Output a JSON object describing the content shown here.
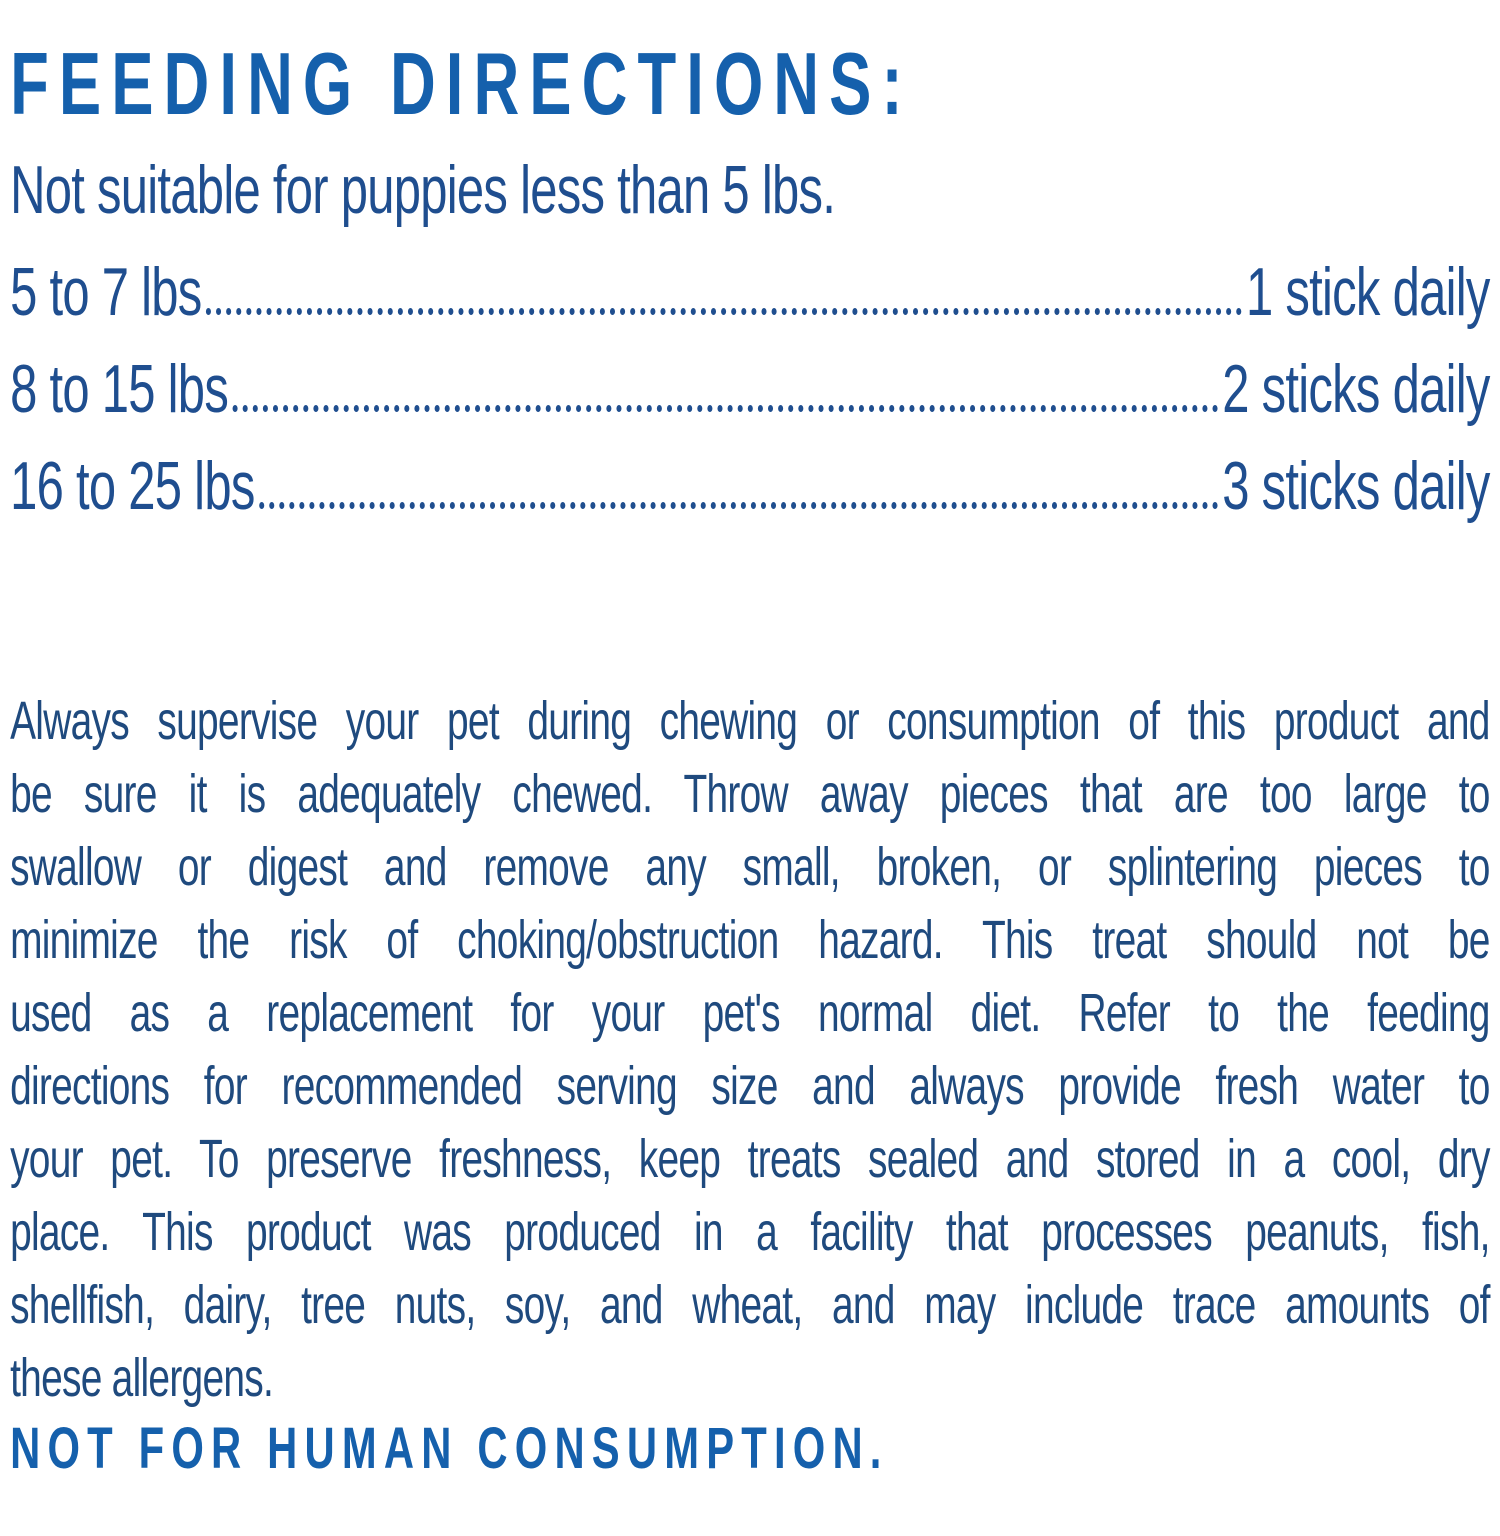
{
  "page": {
    "heading": "FEEDING DIRECTIONS:",
    "note": "Not suitable for puppies less than 5 lbs.",
    "footer": "NOT FOR HUMAN CONSUMPTION."
  },
  "feeding_table": {
    "rows": [
      {
        "weight": "5 to 7 lbs",
        "amount": "1 stick daily"
      },
      {
        "weight": "8 to 15 lbs",
        "amount": "2 sticks daily"
      },
      {
        "weight": "16 to 25 lbs",
        "amount": "3 sticks daily"
      }
    ]
  },
  "paragraph": {
    "lines": [
      "Always supervise your pet during chewing or consumption of this product and",
      "be sure it is adequately chewed. Throw away pieces that are too large to",
      "swallow or digest and remove any small, broken, or splintering pieces to",
      "minimize the risk of choking/obstruction hazard. This treat should not be",
      "used as a replacement for your pet's normal diet. Refer to the feeding",
      "directions for recommended serving size and always provide fresh water to",
      "your pet. To preserve freshness, keep treats sealed and stored in a cool, dry",
      "place. This product was produced in a facility that processes peanuts, fish,",
      "shellfish, dairy, tree nuts, soy, and wheat, and may include trace amounts of",
      "these allergens."
    ]
  },
  "colors": {
    "heading_blue": "#1560AC",
    "table_navy": "#1F4E8F",
    "body_navy": "#1F4A7E",
    "background": "#FFFFFF"
  }
}
